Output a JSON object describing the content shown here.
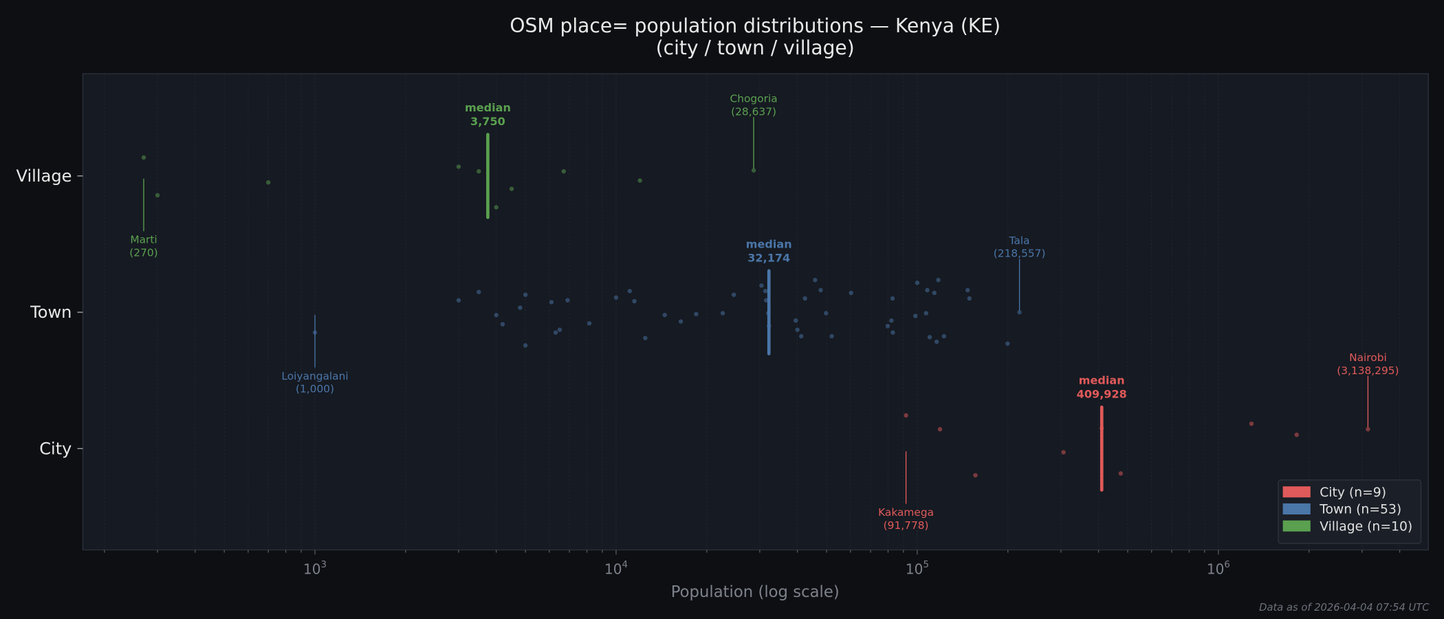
{
  "chart_data": {
    "type": "scatter",
    "title": "OSM place= population distributions — Kenya (KE)",
    "subtitle": "(city / town / village)",
    "xlabel": "Population (log scale)",
    "ylabel": "",
    "x_scale": "log",
    "xlim": [
      170,
      5000000
    ],
    "x_ticks": [
      {
        "value": 1000,
        "label": "10^3"
      },
      {
        "value": 10000,
        "label": "10^4"
      },
      {
        "value": 100000,
        "label": "10^5"
      },
      {
        "value": 1000000,
        "label": "10^6"
      }
    ],
    "categories": [
      "Village",
      "Town",
      "City"
    ],
    "grid": "vertical minor, dotted",
    "legend_position": "bottom-right",
    "series": [
      {
        "name": "City",
        "legend": "City  (n=9)",
        "color": "#e05a5a",
        "values": [
          91778,
          119000,
          156000,
          306000,
          409928,
          474000,
          1288000,
          1820000,
          3138295
        ],
        "median": 409928,
        "median_label": "median",
        "median_text": "409,928",
        "annotations": [
          {
            "name": "Kakamega",
            "text": "(91,778)",
            "value": 91778
          },
          {
            "name": "Nairobi",
            "text": "(3,138,295)",
            "value": 3138295
          }
        ]
      },
      {
        "name": "Town",
        "legend": "Town  (n=53)",
        "color": "#4a76a8",
        "values": [
          1000,
          3000,
          3500,
          4000,
          4200,
          4800,
          5000,
          5000,
          6100,
          6300,
          6500,
          6900,
          8150,
          10000,
          11100,
          11500,
          12500,
          14500,
          16400,
          18450,
          22600,
          24600,
          30400,
          31300,
          31500,
          32000,
          32174,
          39500,
          40000,
          41200,
          42400,
          45800,
          47800,
          49800,
          52000,
          60300,
          79800,
          82100,
          82800,
          83000,
          98600,
          100000,
          107000,
          108000,
          110000,
          114000,
          116000,
          117500,
          122700,
          147000,
          149000,
          199500,
          218557
        ],
        "median": 32174,
        "median_label": "median",
        "median_text": "32,174",
        "annotations": [
          {
            "name": "Loiyangalani",
            "text": "(1,000)",
            "value": 1000
          },
          {
            "name": "Tala",
            "text": "(218,557)",
            "value": 218557
          }
        ]
      },
      {
        "name": "Village",
        "legend": "Village  (n=10)",
        "color": "#5aa04f",
        "values": [
          270,
          300,
          700,
          3000,
          3500,
          4000,
          4500,
          6700,
          12000,
          28637
        ],
        "median": 3750,
        "median_label": "median",
        "median_text": "3,750",
        "annotations": [
          {
            "name": "Marti",
            "text": "(270)",
            "value": 270
          },
          {
            "name": "Chogoria",
            "text": "(28,637)",
            "value": 28637
          }
        ]
      }
    ]
  },
  "footer": "Data as of 2026-04-04 07:54 UTC",
  "colors": {
    "background": "#0d0f13",
    "plot_background": "#161a22"
  }
}
